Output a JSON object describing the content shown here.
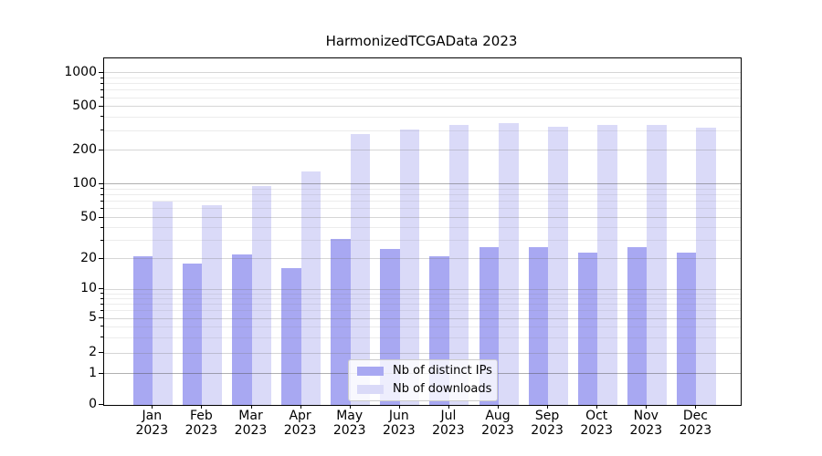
{
  "title": "HarmonizedTCGAData 2023",
  "chart_data": {
    "type": "bar",
    "x": [
      "Jan",
      "Feb",
      "Mar",
      "Apr",
      "May",
      "Jun",
      "Jul",
      "Aug",
      "Sep",
      "Oct",
      "Nov",
      "Dec"
    ],
    "x_year": "2023",
    "series": [
      {
        "name": "Nb of distinct IPs",
        "color": "#a8a8f2",
        "values": [
          21,
          18,
          22,
          16,
          31,
          25,
          21,
          26,
          26,
          23,
          26,
          23
        ]
      },
      {
        "name": "Nb of downloads",
        "color": "#dadaf8",
        "values": [
          70,
          65,
          95,
          130,
          280,
          310,
          340,
          350,
          325,
          340,
          340,
          320
        ]
      }
    ],
    "yscale": "symlog",
    "y_ticks": [
      0,
      1,
      2,
      5,
      10,
      20,
      50,
      100,
      200,
      500,
      1000
    ],
    "y_minor_ticks": [
      3,
      4,
      6,
      7,
      8,
      9,
      30,
      40,
      60,
      70,
      80,
      90,
      300,
      400,
      600,
      700,
      800,
      900
    ],
    "ylim": [
      0,
      1500
    ],
    "grid": "both-horizontal",
    "legend": {
      "position": "lower center",
      "entries": [
        "Nb of distinct IPs",
        "Nb of downloads"
      ]
    }
  }
}
